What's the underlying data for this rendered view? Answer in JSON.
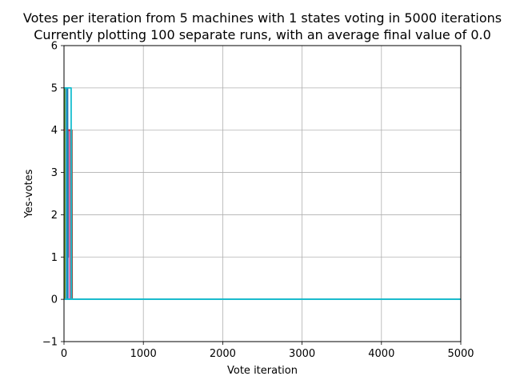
{
  "chart_data": {
    "type": "line",
    "title": "Votes per iteration from 5 machines with 1 states voting in 5000 iterations",
    "subtitle": "Currently plotting 100 separate runs, with an average final value of 0.0",
    "xlabel": "Vote iteration",
    "ylabel": "Yes-votes",
    "xlim": [
      0,
      5000
    ],
    "ylim": [
      -1,
      6
    ],
    "x_ticks": [
      "0",
      "1000",
      "2000",
      "3000",
      "4000",
      "5000"
    ],
    "y_ticks": [
      "−1",
      "0",
      "1",
      "2",
      "3",
      "4",
      "5",
      "6"
    ],
    "grid": true,
    "legend": "none",
    "series": [
      {
        "color": "#2ca02c",
        "points": [
          [
            0,
            5
          ],
          [
            8,
            5
          ],
          [
            12,
            0
          ],
          [
            5000,
            0
          ]
        ]
      },
      {
        "color": "#bcbd22",
        "points": [
          [
            0,
            5
          ],
          [
            30,
            5
          ],
          [
            33,
            0
          ],
          [
            5000,
            0
          ]
        ]
      },
      {
        "color": "#7f7f7f",
        "points": [
          [
            0,
            4
          ],
          [
            55,
            4
          ],
          [
            58,
            1
          ],
          [
            75,
            4
          ],
          [
            95,
            4
          ],
          [
            98,
            0
          ],
          [
            5000,
            0
          ]
        ]
      },
      {
        "color": "#8c564b",
        "points": [
          [
            0,
            4
          ],
          [
            60,
            4
          ],
          [
            65,
            4
          ],
          [
            100,
            4
          ],
          [
            103,
            0
          ],
          [
            5000,
            0
          ]
        ]
      },
      {
        "color": "#e377c2",
        "points": [
          [
            0,
            4
          ],
          [
            70,
            4
          ],
          [
            72,
            0
          ],
          [
            5000,
            0
          ]
        ]
      },
      {
        "color": "#9467bd",
        "points": [
          [
            0,
            5
          ],
          [
            40,
            5
          ],
          [
            42,
            0
          ],
          [
            5000,
            0
          ]
        ]
      },
      {
        "color": "#d62728",
        "points": [
          [
            0,
            4
          ],
          [
            85,
            4
          ],
          [
            88,
            0
          ],
          [
            5000,
            0
          ]
        ]
      },
      {
        "color": "#ff7f0e",
        "points": [
          [
            0,
            5
          ],
          [
            20,
            5
          ],
          [
            22,
            0
          ],
          [
            5000,
            0
          ]
        ]
      },
      {
        "color": "#1f77b4",
        "points": [
          [
            0,
            5
          ],
          [
            45,
            5
          ],
          [
            48,
            0
          ],
          [
            5000,
            0
          ]
        ]
      },
      {
        "color": "#17becf",
        "points": [
          [
            0,
            5
          ],
          [
            25,
            5
          ],
          [
            28,
            0
          ],
          [
            5000,
            0
          ]
        ]
      },
      {
        "color": "#17becf",
        "points": [
          [
            0,
            5
          ],
          [
            90,
            5
          ],
          [
            92,
            0
          ],
          [
            5000,
            0
          ]
        ]
      },
      {
        "color": "#17becf",
        "points": [
          [
            0,
            0
          ],
          [
            5000,
            0
          ]
        ]
      }
    ]
  }
}
